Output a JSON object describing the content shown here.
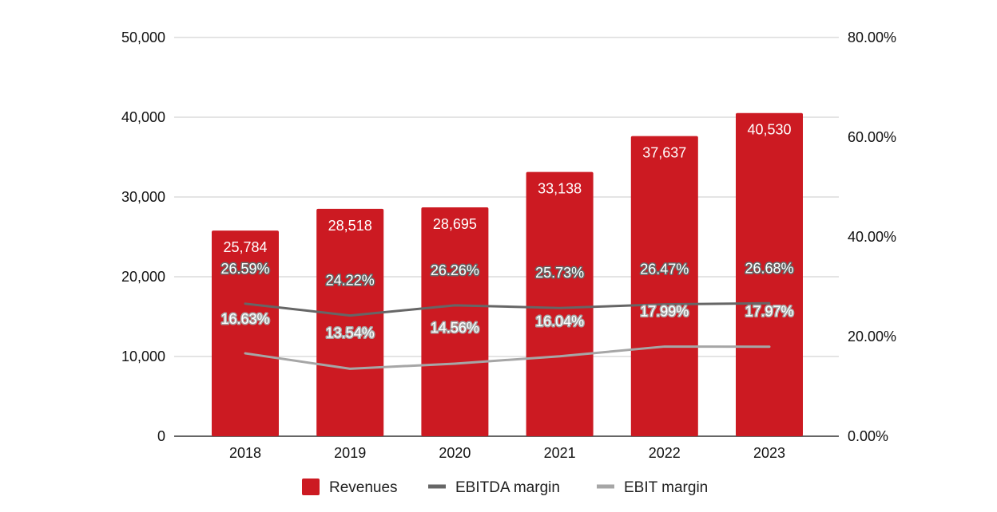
{
  "chart_data": {
    "type": "bar",
    "categories": [
      "2018",
      "2019",
      "2020",
      "2021",
      "2022",
      "2023"
    ],
    "series": [
      {
        "name": "Revenues",
        "kind": "bar",
        "axis": "left",
        "color": "#CC1A22",
        "values": [
          25784,
          28518,
          28695,
          33138,
          37637,
          40530
        ],
        "labels": [
          "25,784",
          "28,518",
          "28,695",
          "33,138",
          "37,637",
          "40,530"
        ]
      },
      {
        "name": "EBITDA margin",
        "kind": "line",
        "axis": "right",
        "color": "#666666",
        "values": [
          26.59,
          24.22,
          26.26,
          25.73,
          26.47,
          26.68
        ],
        "labels": [
          "26.59%",
          "24.22%",
          "26.26%",
          "25.73%",
          "26.47%",
          "26.68%"
        ]
      },
      {
        "name": "EBIT margin",
        "kind": "line",
        "axis": "right",
        "color": "#A6A6A6",
        "values": [
          16.63,
          13.54,
          14.56,
          16.04,
          17.99,
          17.97
        ],
        "labels": [
          "16.63%",
          "13.54%",
          "14.56%",
          "16.04%",
          "17.99%",
          "17.97%"
        ]
      }
    ],
    "y_left": {
      "min": 0,
      "max": 50000,
      "ticks": [
        0,
        10000,
        20000,
        30000,
        40000,
        50000
      ],
      "tick_labels": [
        "0",
        "10,000",
        "20,000",
        "30,000",
        "40,000",
        "50,000"
      ]
    },
    "y_right": {
      "min": 0,
      "max": 80,
      "ticks": [
        0,
        20,
        40,
        60,
        80
      ],
      "tick_labels": [
        "0.00%",
        "20.00%",
        "40.00%",
        "60.00%",
        "80.00%"
      ]
    },
    "grid": true,
    "legend_position": "bottom"
  }
}
